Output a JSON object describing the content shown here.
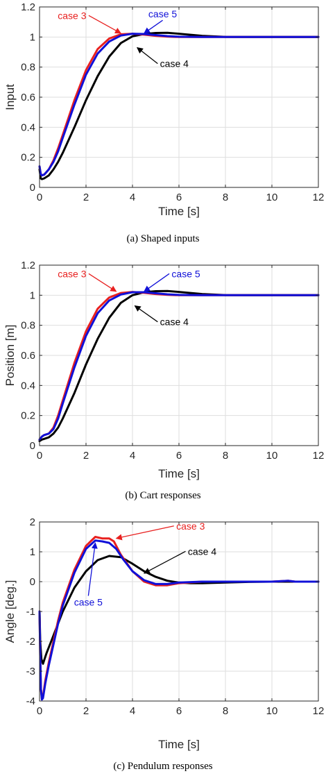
{
  "colors": {
    "case3": "#e8201f",
    "case4": "#000000",
    "case5": "#1010d8"
  },
  "chart_data": [
    {
      "type": "line",
      "caption": "(a) Shaped inputs",
      "xlabel": "Time [s]",
      "ylabel": "Input",
      "xlim": [
        0,
        12
      ],
      "ylim": [
        0,
        1.2
      ],
      "xticks": [
        0,
        2,
        4,
        6,
        8,
        10,
        12
      ],
      "yticks": [
        0,
        0.2,
        0.4,
        0.6,
        0.8,
        1,
        1.2
      ],
      "ytick_labels": [
        "0",
        "0.2",
        "0.4",
        "0.6",
        "0.8",
        "1",
        "1.2"
      ],
      "grid": true,
      "series": [
        {
          "name": "case 4",
          "color": "case4",
          "x": [
            0,
            0.05,
            0.1,
            0.2,
            0.4,
            0.6,
            0.8,
            1,
            1.5,
            2,
            2.5,
            3,
            3.5,
            4,
            4.5,
            5,
            5.5,
            6,
            7,
            8,
            9,
            10,
            12
          ],
          "y": [
            0.12,
            0.06,
            0.055,
            0.06,
            0.08,
            0.12,
            0.17,
            0.23,
            0.4,
            0.58,
            0.74,
            0.87,
            0.96,
            1.005,
            1.02,
            1.027,
            1.028,
            1.022,
            1.008,
            1.001,
            1,
            1,
            1
          ]
        },
        {
          "name": "case 3",
          "color": "case3",
          "x": [
            0,
            0.05,
            0.1,
            0.2,
            0.4,
            0.6,
            0.8,
            1,
            1.5,
            2,
            2.5,
            3,
            3.5,
            4,
            4.5,
            5,
            5.5,
            6,
            7,
            8,
            9,
            10,
            12
          ],
          "y": [
            0.14,
            0.09,
            0.08,
            0.085,
            0.12,
            0.18,
            0.26,
            0.35,
            0.58,
            0.78,
            0.92,
            0.99,
            1.018,
            1.022,
            1.016,
            1.008,
            1.003,
            1,
            1,
            1,
            1,
            1,
            1
          ]
        },
        {
          "name": "case 5",
          "color": "case5",
          "x": [
            0,
            0.05,
            0.1,
            0.2,
            0.4,
            0.6,
            0.8,
            1,
            1.5,
            2,
            2.5,
            3,
            3.5,
            4,
            4.5,
            5,
            5.5,
            6,
            7,
            8,
            9,
            10,
            12
          ],
          "y": [
            0.14,
            0.09,
            0.08,
            0.085,
            0.12,
            0.17,
            0.24,
            0.33,
            0.55,
            0.75,
            0.89,
            0.97,
            1.01,
            1.022,
            1.02,
            1.013,
            1.006,
            1.002,
            1,
            1,
            1,
            1,
            1
          ]
        }
      ],
      "annotations": [
        {
          "text": "case 3",
          "color": "case3",
          "tx": 1.4,
          "ty": 1.12,
          "ax": 3.5,
          "ay": 1.025
        },
        {
          "text": "case 5",
          "color": "case5",
          "tx": 5.3,
          "ty": 1.13,
          "ax": 4.5,
          "ay": 1.025
        },
        {
          "text": "case 4",
          "color": "case4",
          "tx": 5.8,
          "ty": 0.8,
          "ax": 4.2,
          "ay": 0.93
        }
      ]
    },
    {
      "type": "line",
      "caption": "(b) Cart responses",
      "xlabel": "Time [s]",
      "ylabel": "Position [m]",
      "xlim": [
        0,
        12
      ],
      "ylim": [
        0,
        1.2
      ],
      "xticks": [
        0,
        2,
        4,
        6,
        8,
        10,
        12
      ],
      "yticks": [
        0,
        0.2,
        0.4,
        0.6,
        0.8,
        1,
        1.2
      ],
      "ytick_labels": [
        "0",
        "0.2",
        "0.4",
        "0.6",
        "0.8",
        "1",
        "1.2"
      ],
      "grid": true,
      "series": [
        {
          "name": "case 4",
          "color": "case4",
          "x": [
            0,
            0.1,
            0.2,
            0.4,
            0.6,
            0.8,
            1,
            1.5,
            2,
            2.5,
            3,
            3.5,
            4,
            4.5,
            5,
            5.5,
            6,
            7,
            8,
            9,
            10,
            12
          ],
          "y": [
            0.03,
            0.04,
            0.045,
            0.055,
            0.08,
            0.12,
            0.18,
            0.35,
            0.54,
            0.71,
            0.85,
            0.95,
            1.0,
            1.02,
            1.027,
            1.028,
            1.022,
            1.008,
            1.001,
            1,
            1,
            1
          ]
        },
        {
          "name": "case 3",
          "color": "case3",
          "x": [
            0,
            0.1,
            0.2,
            0.4,
            0.6,
            0.8,
            1,
            1.5,
            2,
            2.5,
            3,
            3.5,
            4,
            4.5,
            5,
            5.5,
            6,
            7,
            8,
            9,
            10,
            12
          ],
          "y": [
            0.04,
            0.06,
            0.07,
            0.08,
            0.12,
            0.2,
            0.3,
            0.55,
            0.76,
            0.91,
            0.985,
            1.015,
            1.022,
            1.016,
            1.008,
            1.003,
            1,
            1,
            1,
            1,
            1,
            1
          ]
        },
        {
          "name": "case 5",
          "color": "case5",
          "x": [
            0,
            0.1,
            0.2,
            0.4,
            0.6,
            0.8,
            1,
            1.5,
            2,
            2.5,
            3,
            3.5,
            4,
            4.5,
            5,
            5.5,
            6,
            7,
            8,
            9,
            10,
            12
          ],
          "y": [
            0.04,
            0.06,
            0.07,
            0.08,
            0.11,
            0.18,
            0.28,
            0.52,
            0.73,
            0.88,
            0.965,
            1.005,
            1.02,
            1.02,
            1.013,
            1.006,
            1.002,
            1,
            1,
            1,
            1,
            1
          ]
        }
      ],
      "annotations": [
        {
          "text": "case 3",
          "color": "case3",
          "tx": 1.4,
          "ty": 1.12,
          "ax": 3.3,
          "ay": 1.025
        },
        {
          "text": "case 5",
          "color": "case5",
          "tx": 6.3,
          "ty": 1.12,
          "ax": 4.5,
          "ay": 1.025
        },
        {
          "text": "case 4",
          "color": "case4",
          "tx": 5.8,
          "ty": 0.8,
          "ax": 4.1,
          "ay": 0.93
        }
      ]
    },
    {
      "type": "line",
      "caption": "(c) Pendulum responses",
      "xlabel": "Time [s]",
      "ylabel": "Angle [deg.]",
      "xlim": [
        0,
        12
      ],
      "ylim": [
        -4,
        2
      ],
      "xticks": [
        0,
        2,
        4,
        6,
        8,
        10,
        12
      ],
      "yticks": [
        -4,
        -3,
        -2,
        -1,
        0,
        1,
        2
      ],
      "ytick_labels": [
        "-4",
        "-3",
        "-2",
        "-1",
        "0",
        "1",
        "2"
      ],
      "grid": true,
      "series": [
        {
          "name": "case 4",
          "color": "case4",
          "x": [
            0,
            0.03,
            0.08,
            0.15,
            0.3,
            0.5,
            0.8,
            1,
            1.5,
            2,
            2.5,
            3,
            3.5,
            4,
            4.5,
            5,
            5.5,
            6,
            6.5,
            7,
            8,
            9,
            10,
            11,
            12
          ],
          "y": [
            -1.0,
            -2.0,
            -2.6,
            -2.75,
            -2.4,
            -2.0,
            -1.4,
            -1.0,
            -0.2,
            0.35,
            0.72,
            0.86,
            0.82,
            0.6,
            0.35,
            0.16,
            0.03,
            -0.03,
            -0.05,
            -0.05,
            -0.03,
            -0.01,
            0,
            0,
            0
          ]
        },
        {
          "name": "case 3",
          "color": "case3",
          "x": [
            0,
            0.03,
            0.06,
            0.1,
            0.15,
            0.25,
            0.4,
            0.6,
            0.8,
            1,
            1.5,
            2,
            2.4,
            2.7,
            3.0,
            3.2,
            3.5,
            4,
            4.5,
            5,
            5.5,
            6,
            7,
            8,
            9,
            10,
            10.7,
            11,
            12
          ],
          "y": [
            -1.0,
            -2.5,
            -3.6,
            -3.9,
            -3.85,
            -3.3,
            -2.7,
            -2.0,
            -1.3,
            -0.7,
            0.4,
            1.2,
            1.5,
            1.45,
            1.45,
            1.35,
            0.9,
            0.35,
            0.0,
            -0.12,
            -0.12,
            -0.05,
            0,
            0,
            0,
            0,
            0.03,
            0,
            0
          ]
        },
        {
          "name": "case 5",
          "color": "case5",
          "x": [
            0,
            0.03,
            0.06,
            0.1,
            0.15,
            0.25,
            0.4,
            0.6,
            0.8,
            1,
            1.5,
            2,
            2.4,
            2.7,
            3.0,
            3.3,
            3.6,
            4,
            4.5,
            5,
            5.5,
            6,
            7,
            8,
            9,
            10,
            10.7,
            11,
            12
          ],
          "y": [
            -1.0,
            -2.5,
            -3.6,
            -3.95,
            -3.9,
            -3.4,
            -2.8,
            -2.1,
            -1.4,
            -0.8,
            0.3,
            1.1,
            1.38,
            1.35,
            1.3,
            1.1,
            0.75,
            0.35,
            0.05,
            -0.08,
            -0.08,
            -0.03,
            0,
            0,
            0,
            0,
            0.03,
            0,
            0
          ]
        }
      ],
      "annotations": [
        {
          "text": "case 3",
          "color": "case3",
          "tx": 6.5,
          "ty": 1.75,
          "ax": 3.3,
          "ay": 1.45
        },
        {
          "text": "case 4",
          "color": "case4",
          "tx": 7.0,
          "ty": 0.9,
          "ax": 4.5,
          "ay": 0.28
        },
        {
          "text": "case 5",
          "color": "case5",
          "tx": 2.1,
          "ty": -0.8,
          "ax": 2.4,
          "ay": 1.3
        }
      ]
    }
  ]
}
